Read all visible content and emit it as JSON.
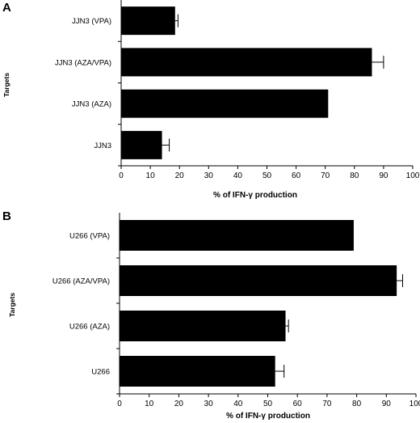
{
  "chart_data": [
    {
      "type": "bar",
      "orientation": "horizontal",
      "panel": "A",
      "categories": [
        "JJN3 (VPA)",
        "JJN3 (AZA/VPA)",
        "JJN3 (AZA)",
        "JJN3"
      ],
      "values": [
        18.5,
        86,
        71,
        14
      ],
      "errors": [
        1,
        4,
        0,
        2.5
      ],
      "xlabel": "% of IFN-γ production",
      "ylabel": "Targets",
      "xlim": [
        0,
        100
      ],
      "xticks": [
        "0",
        "10",
        "20",
        "30",
        "40",
        "50",
        "60",
        "70",
        "80",
        "90",
        "100"
      ],
      "bar_color": "#000000"
    },
    {
      "type": "bar",
      "orientation": "horizontal",
      "panel": "B",
      "categories": [
        "U266 (VPA)",
        "U266 (AZA/VPA)",
        "U266 (AZA)",
        "U266"
      ],
      "values": [
        79,
        93.5,
        56,
        52.5
      ],
      "errors": [
        0,
        2,
        1,
        3
      ],
      "xlabel": "% of IFN-γ production",
      "ylabel": "Targets",
      "xlim": [
        0,
        100
      ],
      "xticks": [
        "0",
        "10",
        "20",
        "30",
        "40",
        "50",
        "60",
        "70",
        "80",
        "90",
        "100"
      ],
      "bar_color": "#000000"
    }
  ]
}
